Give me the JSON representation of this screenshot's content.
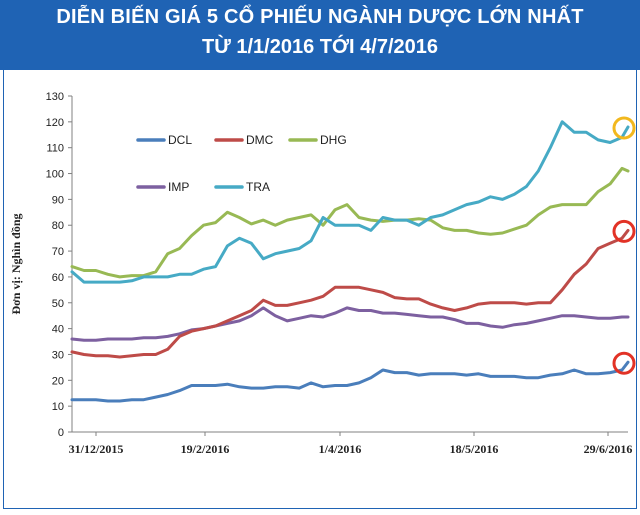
{
  "header": {
    "title_line1": "DIỄN BIẾN GIÁ 5 CỔ PHIẾU NGÀNH DƯỢC LỚN NHẤT",
    "title_line2": "TỪ 1/1/2016 TỚI 4/7/2016"
  },
  "chart_data": {
    "type": "line",
    "ylabel": "Đơn vị: Nghìn đồng",
    "xlabel": "",
    "ylim": [
      0,
      130
    ],
    "yticks": [
      0,
      10,
      20,
      30,
      40,
      50,
      60,
      70,
      80,
      90,
      100,
      110,
      120,
      130
    ],
    "xticks": [
      "31/12/2015",
      "19/2/2016",
      "1/4/2016",
      "18/5/2016",
      "29/6/2016"
    ],
    "grid": false,
    "legend_position": "top-left",
    "colors": {
      "DCL": "#4a7ebb",
      "DMC": "#be4b48",
      "DHG": "#98b954",
      "IMP": "#7d60a0",
      "TRA": "#46aac5",
      "highlight_yellow": "#f2b81e",
      "highlight_red": "#e23226",
      "header_bg": "#1f63b4"
    },
    "x": [
      0,
      4,
      8,
      12,
      16,
      20,
      24,
      28,
      32,
      36,
      40,
      44,
      48,
      52,
      56,
      60,
      64,
      68,
      72,
      76,
      80,
      84,
      88,
      92,
      96,
      100,
      104,
      108,
      112,
      116,
      120,
      124,
      128,
      132,
      136,
      140,
      144,
      148,
      152,
      156,
      160,
      164,
      168,
      172,
      176,
      180,
      184,
      186
    ],
    "series": [
      {
        "name": "DCL",
        "values": [
          12.5,
          12.5,
          12.5,
          12,
          12,
          12.5,
          12.5,
          13.5,
          14.5,
          16,
          18,
          18,
          18,
          18.5,
          17.5,
          17,
          17,
          17.5,
          17.5,
          17,
          19,
          17.5,
          18,
          18,
          19,
          21,
          24,
          23,
          23,
          22,
          22.5,
          22.5,
          22.5,
          22,
          22.5,
          21.5,
          21.5,
          21.5,
          21,
          21,
          22,
          22.5,
          24,
          22.5,
          22.5,
          23,
          24,
          27
        ]
      },
      {
        "name": "DMC",
        "values": [
          31,
          30,
          29.5,
          29.5,
          29,
          29.5,
          30,
          30,
          32,
          37,
          39,
          40,
          41,
          43,
          45,
          47,
          51,
          49,
          49,
          50,
          51,
          52.5,
          56,
          56,
          56,
          55,
          54,
          52,
          51.5,
          51.5,
          49.5,
          48,
          47,
          48,
          49.5,
          50,
          50,
          50,
          49.5,
          50,
          50,
          55,
          61,
          65,
          71,
          73,
          75,
          78
        ]
      },
      {
        "name": "DHG",
        "values": [
          64,
          62.5,
          62.5,
          61,
          60,
          60.5,
          60.5,
          62,
          69,
          71,
          76,
          80,
          81,
          85,
          83,
          80.5,
          82,
          80,
          82,
          83,
          84,
          80,
          86,
          88,
          83,
          82,
          81.5,
          82,
          82,
          82.5,
          82,
          79,
          78,
          78,
          77,
          76.5,
          77,
          78.5,
          80,
          84,
          87,
          88,
          88,
          88,
          93,
          96,
          102,
          101
        ]
      },
      {
        "name": "IMP",
        "values": [
          36,
          35.5,
          35.5,
          36,
          36,
          36,
          36.5,
          36.5,
          37,
          38,
          39.5,
          40,
          41,
          42,
          43,
          45,
          48,
          45,
          43,
          44,
          45,
          44.5,
          46,
          48,
          47,
          47,
          46,
          46,
          45.5,
          45,
          44.5,
          44.5,
          43.5,
          42,
          42,
          41,
          40.5,
          41.5,
          42,
          43,
          44,
          45,
          45,
          44.5,
          44,
          44,
          44.5,
          44.5
        ]
      },
      {
        "name": "TRA",
        "values": [
          62,
          58,
          58,
          58,
          58,
          58.5,
          60,
          60,
          60,
          61,
          61,
          63,
          64,
          72,
          75,
          73,
          67,
          69,
          70,
          71,
          74,
          83,
          80,
          80,
          80,
          78,
          83,
          82,
          82,
          80,
          83,
          84,
          86,
          88,
          89,
          91,
          90,
          92,
          95,
          101,
          110,
          120,
          116,
          116,
          113,
          112,
          114,
          118
        ]
      }
    ],
    "highlights": [
      {
        "series": "TRA",
        "color": "#f2b81e"
      },
      {
        "series": "DMC",
        "color": "#e23226"
      },
      {
        "series": "DCL",
        "color": "#e23226"
      }
    ]
  }
}
